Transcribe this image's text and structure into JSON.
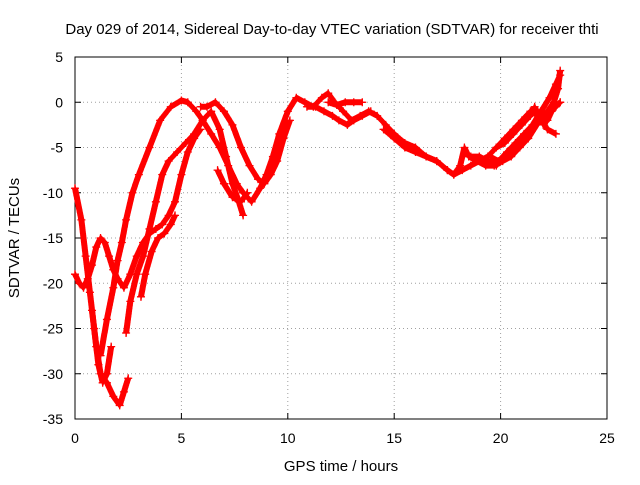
{
  "chart_data": {
    "type": "scatter",
    "title": "Day 029 of 2014, Sidereal Day-to-day VTEC variation (SDTVAR) for receiver thti",
    "xlabel": "GPS time / hours",
    "ylabel": "SDTVAR / TECUs",
    "xlim": [
      0,
      25
    ],
    "ylim": [
      -35,
      5
    ],
    "xticks": [
      "0",
      "5",
      "10",
      "15",
      "20",
      "25"
    ],
    "yticks": [
      "5",
      "0",
      "-5",
      "-10",
      "-15",
      "-20",
      "-25",
      "-30",
      "-35"
    ],
    "grid": true,
    "marker": "+",
    "color": "#ff0000",
    "series": [
      {
        "points": [
          [
            0,
            -9.5
          ],
          [
            0.3,
            -13
          ],
          [
            0.5,
            -17
          ],
          [
            0.7,
            -21
          ],
          [
            0.9,
            -25
          ],
          [
            1.1,
            -29
          ],
          [
            1.3,
            -31
          ],
          [
            1.5,
            -30
          ],
          [
            1.7,
            -27
          ]
        ]
      },
      {
        "points": [
          [
            0,
            -19
          ],
          [
            0.2,
            -20
          ],
          [
            0.4,
            -20.5
          ],
          [
            0.6,
            -19.5
          ],
          [
            0.8,
            -18
          ],
          [
            1.0,
            -16
          ],
          [
            1.2,
            -15
          ],
          [
            1.4,
            -15.5
          ],
          [
            1.6,
            -17
          ],
          [
            1.8,
            -18.5
          ],
          [
            2.0,
            -19.5
          ],
          [
            2.3,
            -20.5
          ],
          [
            2.6,
            -19
          ],
          [
            2.9,
            -17
          ],
          [
            3.2,
            -15.5
          ],
          [
            3.5,
            -14.5
          ],
          [
            3.8,
            -14
          ],
          [
            4.1,
            -13.5
          ],
          [
            4.4,
            -12.5
          ],
          [
            4.7,
            -11
          ],
          [
            5.0,
            -8
          ],
          [
            5.3,
            -5.5
          ],
          [
            5.6,
            -4
          ],
          [
            5.9,
            -3
          ]
        ]
      },
      {
        "points": [
          [
            0.8,
            -23
          ],
          [
            1.0,
            -27
          ],
          [
            1.2,
            -30
          ],
          [
            1.5,
            -31
          ],
          [
            1.8,
            -32.5
          ],
          [
            2.1,
            -33.5
          ],
          [
            2.3,
            -32
          ],
          [
            2.5,
            -30.5
          ]
        ]
      },
      {
        "points": [
          [
            1.2,
            -28
          ],
          [
            1.5,
            -24
          ],
          [
            1.8,
            -20.5
          ],
          [
            2.0,
            -17.5
          ],
          [
            2.2,
            -15.5
          ],
          [
            2.4,
            -13
          ],
          [
            2.7,
            -10
          ],
          [
            3.0,
            -8
          ],
          [
            3.5,
            -5
          ],
          [
            4.0,
            -2
          ],
          [
            4.5,
            -0.5
          ],
          [
            5.0,
            0.2
          ],
          [
            5.3,
            0
          ],
          [
            5.7,
            -1
          ],
          [
            6.0,
            -2
          ],
          [
            6.4,
            -3.5
          ],
          [
            6.8,
            -5
          ],
          [
            7.2,
            -7
          ],
          [
            7.6,
            -9
          ],
          [
            7.9,
            -10
          ],
          [
            8.3,
            -11
          ],
          [
            8.7,
            -9.5
          ],
          [
            9.0,
            -8
          ],
          [
            9.3,
            -6
          ],
          [
            9.6,
            -3.5
          ],
          [
            10.0,
            -1
          ],
          [
            10.4,
            0.5
          ],
          [
            10.8,
            0
          ],
          [
            11.2,
            -0.5
          ],
          [
            11.6,
            0.5
          ],
          [
            11.9,
            1
          ],
          [
            12.2,
            0
          ],
          [
            12.6,
            -1
          ],
          [
            13.0,
            -2
          ],
          [
            13.4,
            -1.5
          ],
          [
            13.8,
            -1
          ],
          [
            14.2,
            -1.5
          ],
          [
            14.6,
            -2.5
          ],
          [
            15.0,
            -3.5
          ],
          [
            15.5,
            -4.5
          ],
          [
            16.0,
            -5
          ],
          [
            16.5,
            -6
          ],
          [
            17.0,
            -6.5
          ],
          [
            17.5,
            -7.5
          ],
          [
            17.8,
            -8
          ],
          [
            18.2,
            -7.5
          ],
          [
            18.6,
            -7
          ],
          [
            19.0,
            -6.5
          ],
          [
            19.4,
            -6
          ],
          [
            19.8,
            -5
          ],
          [
            20.2,
            -4
          ],
          [
            20.6,
            -3
          ],
          [
            21.0,
            -2
          ],
          [
            21.4,
            -1
          ],
          [
            21.8,
            -1.5
          ],
          [
            22.2,
            -3
          ],
          [
            22.6,
            -3.5
          ]
        ]
      },
      {
        "points": [
          [
            2.4,
            -25.5
          ],
          [
            2.6,
            -22
          ],
          [
            2.9,
            -19
          ],
          [
            3.2,
            -17
          ],
          [
            3.5,
            -14
          ],
          [
            3.8,
            -11
          ],
          [
            4.1,
            -8
          ],
          [
            4.4,
            -6.5
          ],
          [
            4.8,
            -5.5
          ],
          [
            5.2,
            -4.5
          ],
          [
            5.6,
            -3.5
          ],
          [
            6.0,
            -2
          ],
          [
            6.4,
            -1
          ],
          [
            6.8,
            -3
          ],
          [
            7.1,
            -6
          ],
          [
            7.4,
            -9
          ],
          [
            7.7,
            -11
          ],
          [
            7.9,
            -12.5
          ]
        ]
      },
      {
        "points": [
          [
            3.1,
            -21.5
          ],
          [
            3.3,
            -19
          ],
          [
            3.6,
            -16.5
          ],
          [
            3.9,
            -15
          ],
          [
            4.2,
            -14.5
          ],
          [
            4.5,
            -13.5
          ],
          [
            4.7,
            -12.5
          ]
        ]
      },
      {
        "points": [
          [
            5.9,
            -0.5
          ],
          [
            6.2,
            -0.5
          ],
          [
            6.6,
            0
          ],
          [
            7.0,
            -1
          ],
          [
            7.4,
            -2.5
          ],
          [
            7.8,
            -5
          ],
          [
            8.2,
            -7
          ],
          [
            8.6,
            -8.5
          ],
          [
            8.9,
            -9
          ],
          [
            9.2,
            -8
          ],
          [
            9.5,
            -6.5
          ],
          [
            9.8,
            -4
          ],
          [
            10.1,
            -2
          ]
        ]
      },
      {
        "points": [
          [
            6.7,
            -7.5
          ],
          [
            7.0,
            -9
          ],
          [
            7.4,
            -10.5
          ],
          [
            7.8,
            -11
          ],
          [
            8.1,
            -10
          ]
        ]
      },
      {
        "points": [
          [
            10.9,
            -0.5
          ],
          [
            11.3,
            -0.5
          ],
          [
            11.7,
            -1
          ],
          [
            12.1,
            -1.5
          ],
          [
            12.4,
            -2
          ],
          [
            12.8,
            -2.5
          ],
          [
            13.1,
            -2
          ],
          [
            13.5,
            -1.5
          ],
          [
            13.9,
            -1
          ]
        ]
      },
      {
        "points": [
          [
            11.9,
            0
          ],
          [
            12.3,
            -0.3
          ],
          [
            12.7,
            0
          ],
          [
            13.1,
            0
          ],
          [
            13.5,
            0
          ]
        ]
      },
      {
        "points": [
          [
            14.5,
            -3
          ],
          [
            15.0,
            -4
          ],
          [
            15.5,
            -5
          ],
          [
            16.0,
            -5.5
          ],
          [
            16.5,
            -6
          ],
          [
            17.0,
            -6.5
          ],
          [
            17.5,
            -7.5
          ],
          [
            17.8,
            -8
          ],
          [
            18.1,
            -7
          ],
          [
            18.3,
            -5
          ],
          [
            18.5,
            -6
          ],
          [
            18.9,
            -6.5
          ],
          [
            19.3,
            -7
          ],
          [
            19.7,
            -7
          ],
          [
            20.1,
            -6.5
          ],
          [
            20.5,
            -6
          ],
          [
            20.9,
            -5
          ],
          [
            21.3,
            -4
          ],
          [
            21.7,
            -2.5
          ],
          [
            22.1,
            -1.5
          ],
          [
            22.5,
            -0.5
          ],
          [
            22.8,
            0
          ]
        ]
      },
      {
        "points": [
          [
            19.5,
            -6
          ],
          [
            19.9,
            -6.5
          ],
          [
            20.3,
            -5.5
          ],
          [
            20.7,
            -4.5
          ],
          [
            21.1,
            -3.5
          ],
          [
            21.5,
            -2.5
          ],
          [
            21.9,
            -1
          ],
          [
            22.3,
            0.5
          ],
          [
            22.6,
            2
          ],
          [
            22.8,
            3
          ]
        ]
      },
      {
        "points": [
          [
            18.6,
            -6
          ],
          [
            19.0,
            -6
          ],
          [
            19.4,
            -6.5
          ],
          [
            19.8,
            -7
          ],
          [
            20.2,
            -6
          ],
          [
            20.6,
            -5
          ],
          [
            21.0,
            -4
          ],
          [
            21.4,
            -3
          ],
          [
            21.8,
            -2
          ],
          [
            22.2,
            -1
          ],
          [
            22.5,
            0
          ],
          [
            22.7,
            1.5
          ],
          [
            22.8,
            3.5
          ]
        ]
      },
      {
        "points": [
          [
            19.8,
            -5
          ],
          [
            20.2,
            -4.5
          ],
          [
            20.6,
            -3.5
          ],
          [
            21.0,
            -2.5
          ],
          [
            21.4,
            -1.5
          ],
          [
            21.6,
            -0.5
          ],
          [
            21.8,
            -1.5
          ],
          [
            22.0,
            -2.5
          ],
          [
            22.2,
            -2
          ],
          [
            22.4,
            -1
          ],
          [
            22.6,
            -0.5
          ],
          [
            22.8,
            0
          ]
        ]
      }
    ]
  }
}
